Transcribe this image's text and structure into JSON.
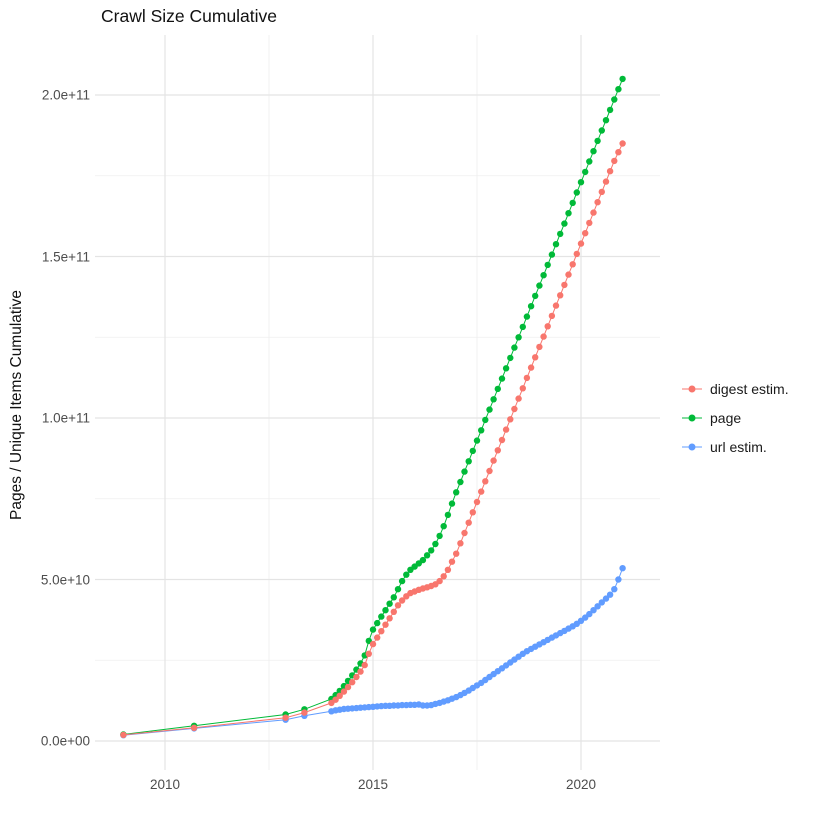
{
  "figure": {
    "title": "Crawl Size Cumulative",
    "y_axis_label": "Pages / Unique Items Cumulative"
  },
  "chart_data": {
    "type": "scatter",
    "title": "Crawl Size Cumulative",
    "xlabel": "",
    "ylabel": "Pages / Unique Items Cumulative",
    "grid": true,
    "legend_position": "right",
    "xlim": [
      2008.3,
      2021.9
    ],
    "ylim": [
      -9,
      218
    ],
    "value_unit": "1e9 (values stored in billions; y tick labels shown in scientific notation)",
    "x_ticks": [
      {
        "value": 2010,
        "label": "2010"
      },
      {
        "value": 2015,
        "label": "2015"
      },
      {
        "value": 2020,
        "label": "2020"
      }
    ],
    "y_ticks": [
      {
        "value": 0,
        "label": "0.0e+00"
      },
      {
        "value": 50,
        "label": "5.0e+10"
      },
      {
        "value": 100,
        "label": "1.0e+11"
      },
      {
        "value": 150,
        "label": "1.5e+11"
      },
      {
        "value": 200,
        "label": "2.0e+11"
      }
    ],
    "x_minor_gridlines": [
      2012.5,
      2017.5
    ],
    "y_minor_gridlines": [
      25,
      75,
      125,
      175
    ],
    "series": [
      {
        "name": "digest estim.",
        "color": "#F8766D",
        "points": [
          [
            2009.0,
            1.9
          ],
          [
            2010.7,
            4.1
          ],
          [
            2012.9,
            7.2
          ],
          [
            2013.35,
            8.8
          ],
          [
            2014.0,
            11.8
          ],
          [
            2014.1,
            12.8
          ],
          [
            2014.2,
            14.0
          ],
          [
            2014.3,
            15.3
          ],
          [
            2014.4,
            16.7
          ],
          [
            2014.5,
            18.2
          ],
          [
            2014.6,
            19.8
          ],
          [
            2014.7,
            21.5
          ],
          [
            2014.8,
            23.5
          ],
          [
            2014.9,
            27.0
          ],
          [
            2015.0,
            30.0
          ],
          [
            2015.1,
            32.0
          ],
          [
            2015.2,
            34.0
          ],
          [
            2015.3,
            36.0
          ],
          [
            2015.4,
            38.0
          ],
          [
            2015.5,
            40.0
          ],
          [
            2015.6,
            42.0
          ],
          [
            2015.7,
            43.5
          ],
          [
            2015.8,
            44.8
          ],
          [
            2015.9,
            45.8
          ],
          [
            2016.0,
            46.3
          ],
          [
            2016.1,
            46.8
          ],
          [
            2016.2,
            47.2
          ],
          [
            2016.3,
            47.6
          ],
          [
            2016.4,
            48.0
          ],
          [
            2016.5,
            48.5
          ],
          [
            2016.6,
            49.5
          ],
          [
            2016.7,
            51.0
          ],
          [
            2016.8,
            53.0
          ],
          [
            2016.9,
            55.5
          ],
          [
            2017.0,
            58.0
          ],
          [
            2017.1,
            61.2
          ],
          [
            2017.2,
            64.4
          ],
          [
            2017.3,
            67.6
          ],
          [
            2017.4,
            70.8
          ],
          [
            2017.5,
            74.0
          ],
          [
            2017.6,
            77.2
          ],
          [
            2017.7,
            80.4
          ],
          [
            2017.8,
            83.6
          ],
          [
            2017.9,
            86.8
          ],
          [
            2018.0,
            90.0
          ],
          [
            2018.1,
            93.2
          ],
          [
            2018.2,
            96.4
          ],
          [
            2018.3,
            99.6
          ],
          [
            2018.4,
            102.8
          ],
          [
            2018.5,
            106.0
          ],
          [
            2018.6,
            109.2
          ],
          [
            2018.7,
            112.4
          ],
          [
            2018.8,
            115.6
          ],
          [
            2018.9,
            118.8
          ],
          [
            2019.0,
            122.0
          ],
          [
            2019.1,
            125.2
          ],
          [
            2019.2,
            128.4
          ],
          [
            2019.3,
            131.6
          ],
          [
            2019.4,
            134.8
          ],
          [
            2019.5,
            138.0
          ],
          [
            2019.6,
            141.2
          ],
          [
            2019.7,
            144.4
          ],
          [
            2019.8,
            147.6
          ],
          [
            2019.9,
            150.8
          ],
          [
            2020.0,
            154.0
          ],
          [
            2020.1,
            157.2
          ],
          [
            2020.2,
            160.4
          ],
          [
            2020.3,
            163.6
          ],
          [
            2020.4,
            166.8
          ],
          [
            2020.5,
            170.0
          ],
          [
            2020.6,
            173.2
          ],
          [
            2020.7,
            176.4
          ],
          [
            2020.8,
            179.6
          ],
          [
            2020.9,
            182.3
          ],
          [
            2021.0,
            185.0
          ]
        ]
      },
      {
        "name": "page",
        "color": "#00BA38",
        "points": [
          [
            2009.0,
            2.0
          ],
          [
            2010.7,
            4.7
          ],
          [
            2012.9,
            8.2
          ],
          [
            2013.35,
            9.8
          ],
          [
            2014.0,
            13.0
          ],
          [
            2014.1,
            14.2
          ],
          [
            2014.2,
            15.5
          ],
          [
            2014.3,
            17.0
          ],
          [
            2014.4,
            18.6
          ],
          [
            2014.5,
            20.3
          ],
          [
            2014.6,
            22.1
          ],
          [
            2014.7,
            24.0
          ],
          [
            2014.8,
            26.5
          ],
          [
            2014.9,
            31.0
          ],
          [
            2015.0,
            34.5
          ],
          [
            2015.1,
            36.5
          ],
          [
            2015.2,
            38.5
          ],
          [
            2015.3,
            40.5
          ],
          [
            2015.4,
            42.5
          ],
          [
            2015.5,
            44.5
          ],
          [
            2015.6,
            47.0
          ],
          [
            2015.7,
            49.5
          ],
          [
            2015.8,
            51.5
          ],
          [
            2015.9,
            53.0
          ],
          [
            2016.0,
            54.0
          ],
          [
            2016.1,
            55.0
          ],
          [
            2016.2,
            56.0
          ],
          [
            2016.3,
            57.5
          ],
          [
            2016.4,
            59.0
          ],
          [
            2016.5,
            61.0
          ],
          [
            2016.6,
            63.5
          ],
          [
            2016.7,
            66.5
          ],
          [
            2016.8,
            70.0
          ],
          [
            2016.9,
            73.5
          ],
          [
            2017.0,
            77.0
          ],
          [
            2017.1,
            80.2
          ],
          [
            2017.2,
            83.4
          ],
          [
            2017.3,
            86.6
          ],
          [
            2017.4,
            89.8
          ],
          [
            2017.5,
            93.0
          ],
          [
            2017.6,
            96.2
          ],
          [
            2017.7,
            99.4
          ],
          [
            2017.8,
            102.6
          ],
          [
            2017.9,
            105.8
          ],
          [
            2018.0,
            109.0
          ],
          [
            2018.1,
            112.2
          ],
          [
            2018.2,
            115.4
          ],
          [
            2018.3,
            118.6
          ],
          [
            2018.4,
            121.8
          ],
          [
            2018.5,
            125.0
          ],
          [
            2018.6,
            128.2
          ],
          [
            2018.7,
            131.4
          ],
          [
            2018.8,
            134.6
          ],
          [
            2018.9,
            137.8
          ],
          [
            2019.0,
            141.0
          ],
          [
            2019.1,
            144.2
          ],
          [
            2019.2,
            147.4
          ],
          [
            2019.3,
            150.6
          ],
          [
            2019.4,
            153.8
          ],
          [
            2019.5,
            157.0
          ],
          [
            2019.6,
            160.2
          ],
          [
            2019.7,
            163.4
          ],
          [
            2019.8,
            166.6
          ],
          [
            2019.9,
            169.8
          ],
          [
            2020.0,
            173.0
          ],
          [
            2020.1,
            176.2
          ],
          [
            2020.2,
            179.4
          ],
          [
            2020.3,
            182.6
          ],
          [
            2020.4,
            185.8
          ],
          [
            2020.5,
            189.0
          ],
          [
            2020.6,
            192.2
          ],
          [
            2020.7,
            195.4
          ],
          [
            2020.8,
            198.6
          ],
          [
            2020.9,
            201.8
          ],
          [
            2021.0,
            205.0
          ]
        ]
      },
      {
        "name": "url estim.",
        "color": "#619CFF",
        "points": [
          [
            2009.0,
            1.8
          ],
          [
            2010.7,
            3.9
          ],
          [
            2012.9,
            6.6
          ],
          [
            2013.35,
            7.8
          ],
          [
            2014.0,
            9.2
          ],
          [
            2014.1,
            9.5
          ],
          [
            2014.2,
            9.7
          ],
          [
            2014.3,
            9.9
          ],
          [
            2014.4,
            10.0
          ],
          [
            2014.5,
            10.1
          ],
          [
            2014.6,
            10.2
          ],
          [
            2014.7,
            10.3
          ],
          [
            2014.8,
            10.4
          ],
          [
            2014.9,
            10.5
          ],
          [
            2015.0,
            10.6
          ],
          [
            2015.1,
            10.7
          ],
          [
            2015.2,
            10.8
          ],
          [
            2015.3,
            10.9
          ],
          [
            2015.4,
            10.9
          ],
          [
            2015.5,
            11.0
          ],
          [
            2015.6,
            11.0
          ],
          [
            2015.7,
            11.1
          ],
          [
            2015.8,
            11.1
          ],
          [
            2015.9,
            11.2
          ],
          [
            2016.0,
            11.2
          ],
          [
            2016.1,
            11.3
          ],
          [
            2016.2,
            11.0
          ],
          [
            2016.3,
            11.0
          ],
          [
            2016.4,
            11.1
          ],
          [
            2016.5,
            11.5
          ],
          [
            2016.6,
            11.8
          ],
          [
            2016.7,
            12.2
          ],
          [
            2016.8,
            12.6
          ],
          [
            2016.9,
            13.1
          ],
          [
            2017.0,
            13.6
          ],
          [
            2017.1,
            14.2
          ],
          [
            2017.2,
            14.9
          ],
          [
            2017.3,
            15.6
          ],
          [
            2017.4,
            16.4
          ],
          [
            2017.5,
            17.2
          ],
          [
            2017.6,
            18.0
          ],
          [
            2017.7,
            18.9
          ],
          [
            2017.8,
            19.8
          ],
          [
            2017.9,
            20.7
          ],
          [
            2018.0,
            21.6
          ],
          [
            2018.1,
            22.5
          ],
          [
            2018.2,
            23.4
          ],
          [
            2018.3,
            24.3
          ],
          [
            2018.4,
            25.2
          ],
          [
            2018.5,
            26.1
          ],
          [
            2018.6,
            27.0
          ],
          [
            2018.7,
            27.8
          ],
          [
            2018.8,
            28.5
          ],
          [
            2018.9,
            29.2
          ],
          [
            2019.0,
            29.9
          ],
          [
            2019.1,
            30.6
          ],
          [
            2019.2,
            31.3
          ],
          [
            2019.3,
            32.0
          ],
          [
            2019.4,
            32.7
          ],
          [
            2019.5,
            33.4
          ],
          [
            2019.6,
            34.1
          ],
          [
            2019.7,
            34.8
          ],
          [
            2019.8,
            35.5
          ],
          [
            2019.9,
            36.3
          ],
          [
            2020.0,
            37.2
          ],
          [
            2020.1,
            38.2
          ],
          [
            2020.2,
            39.3
          ],
          [
            2020.3,
            40.5
          ],
          [
            2020.4,
            41.7
          ],
          [
            2020.5,
            42.9
          ],
          [
            2020.6,
            44.1
          ],
          [
            2020.7,
            45.3
          ],
          [
            2020.8,
            47.0
          ],
          [
            2020.9,
            50.0
          ],
          [
            2021.0,
            53.5
          ]
        ]
      }
    ]
  }
}
